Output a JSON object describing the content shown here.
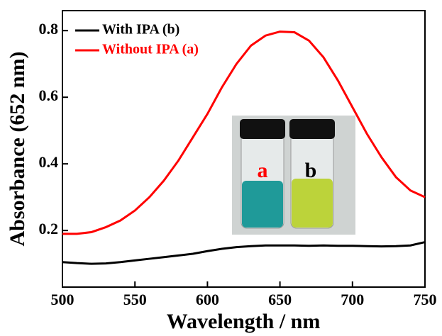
{
  "chart_data": {
    "type": "line",
    "x_label": "Wavelength / nm",
    "y_label": "Absorbance (652 nm)",
    "x": [
      500,
      510,
      520,
      530,
      540,
      550,
      560,
      570,
      580,
      590,
      600,
      610,
      620,
      630,
      640,
      650,
      660,
      670,
      680,
      690,
      700,
      710,
      720,
      730,
      740,
      750
    ],
    "series": [
      {
        "name": "With IPA (b)",
        "color": "#000000",
        "values": [
          0.105,
          0.102,
          0.1,
          0.101,
          0.105,
          0.11,
          0.115,
          0.12,
          0.125,
          0.13,
          0.138,
          0.145,
          0.15,
          0.153,
          0.155,
          0.155,
          0.155,
          0.154,
          0.155,
          0.154,
          0.154,
          0.153,
          0.152,
          0.153,
          0.155,
          0.165
        ]
      },
      {
        "name": "Without IPA (a)",
        "color": "#ff0000",
        "values": [
          0.19,
          0.19,
          0.195,
          0.21,
          0.23,
          0.26,
          0.3,
          0.35,
          0.41,
          0.48,
          0.55,
          0.63,
          0.7,
          0.755,
          0.785,
          0.797,
          0.795,
          0.77,
          0.72,
          0.65,
          0.57,
          0.49,
          0.42,
          0.36,
          0.32,
          0.3
        ]
      }
    ],
    "xlim": [
      500,
      750
    ],
    "xticks": [
      500,
      550,
      600,
      650,
      700,
      750
    ],
    "ylim": [
      0.03,
      0.86
    ],
    "yticks": [
      0.2,
      0.4,
      0.6,
      0.8
    ],
    "legend": "upper left",
    "annotations": [
      {
        "text": "a",
        "color": "#ff0000"
      },
      {
        "text": "b",
        "color": "#000000"
      }
    ]
  }
}
